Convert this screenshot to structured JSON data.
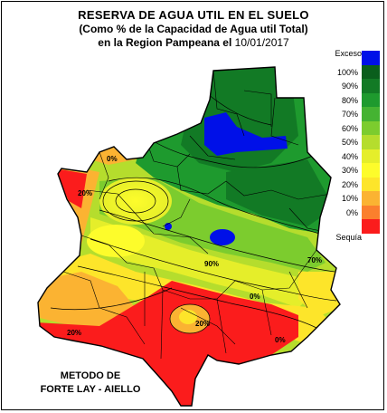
{
  "title": {
    "line1": "RESERVA DE AGUA UTIL EN EL SUELO",
    "line2": "(Como % de la Capacidad de  Agua util Total)",
    "line3_prefix": "en la Region Pampeana el",
    "line3_date": "10/01/2017"
  },
  "legend": {
    "top_label": "Exceso",
    "bottom_label": "Sequía",
    "entries": [
      {
        "label": "",
        "color": "#0010e8"
      },
      {
        "label": "100%",
        "color": "#0a5e1c"
      },
      {
        "label": "90%",
        "color": "#127a25"
      },
      {
        "label": "80%",
        "color": "#1e9a2e"
      },
      {
        "label": "70%",
        "color": "#45b332"
      },
      {
        "label": "60%",
        "color": "#7ccc2e"
      },
      {
        "label": "50%",
        "color": "#b5dd2d"
      },
      {
        "label": "40%",
        "color": "#e5ee2a"
      },
      {
        "label": "30%",
        "color": "#fdfc2b"
      },
      {
        "label": "20%",
        "color": "#fde52a"
      },
      {
        "label": "10%",
        "color": "#fbb332"
      },
      {
        "label": "0%",
        "color": "#fb7f2d"
      },
      {
        "label": "",
        "color": "#fb1c1c"
      }
    ]
  },
  "map_labels": [
    "90%",
    "20%",
    "0%",
    "70%",
    "0%",
    "20%",
    "0%",
    "20%"
  ],
  "method": {
    "line1": "METODO DE",
    "line2": "FORTE LAY - AIELLO"
  },
  "colors": {
    "excess": "#0010e8",
    "drought": "#fb1c1c",
    "dark_green": "#127a25",
    "green": "#1e9a2e",
    "light_green": "#7ccc2e",
    "yellow": "#fdfc2b",
    "orange": "#fbb332",
    "boundary": "#000000"
  }
}
